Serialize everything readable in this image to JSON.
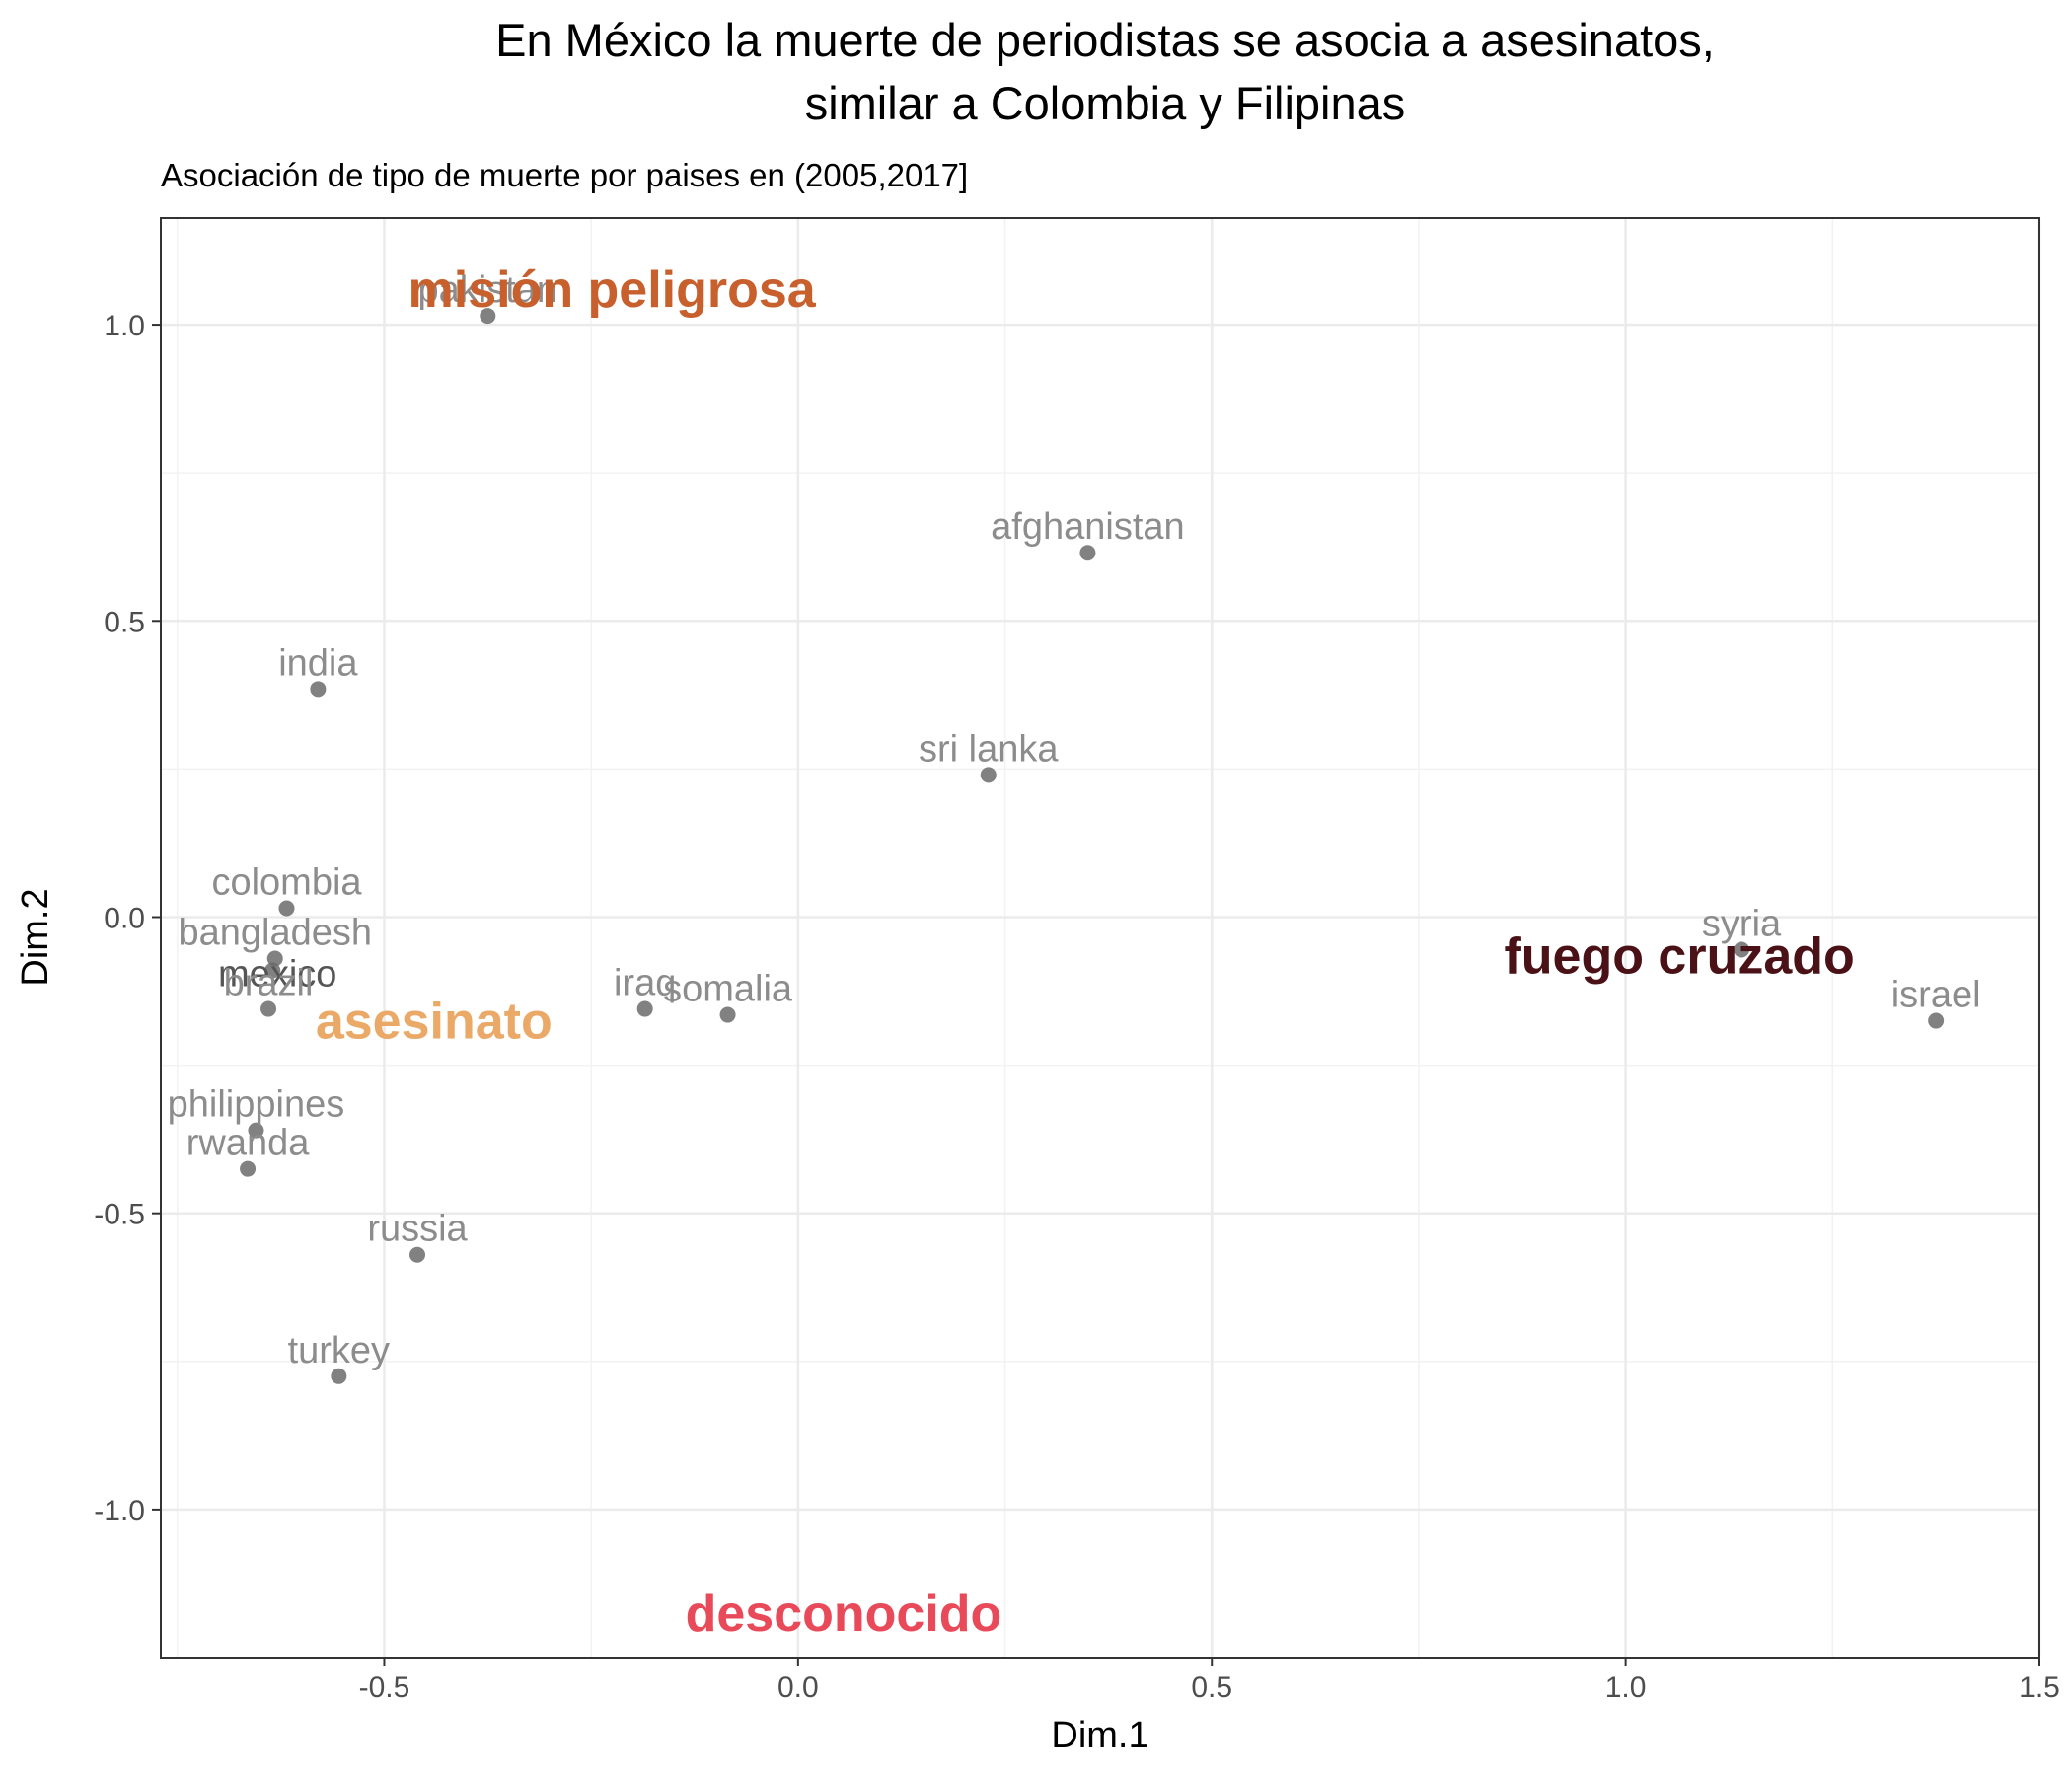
{
  "chart_data": {
    "type": "scatter",
    "title_lines": [
      "En México la muerte de periodistas se asocia a asesinatos,",
      "similar a Colombia y Filipinas"
    ],
    "subtitle": "Asociación de tipo de muerte por paises en  (2005,2017]",
    "xlabel": "Dim.1",
    "ylabel": "Dim.2",
    "xlim": [
      -0.77,
      1.5
    ],
    "ylim": [
      -1.25,
      1.18
    ],
    "x_ticks": [
      -0.5,
      0.0,
      0.5,
      1.0,
      1.5
    ],
    "x_tick_labels": [
      "-0.5",
      "0.0",
      "0.5",
      "1.0",
      "1.5"
    ],
    "y_ticks": [
      -1.0,
      -0.5,
      0.0,
      0.5,
      1.0
    ],
    "y_tick_labels": [
      "-1.0",
      "-0.5",
      "0.0",
      "0.5",
      "1.0"
    ],
    "grid": true,
    "theme": "bw",
    "points": [
      {
        "label": "pakistan",
        "x": -0.375,
        "y": 1.015
      },
      {
        "label": "afghanistan",
        "x": 0.35,
        "y": 0.615
      },
      {
        "label": "india",
        "x": -0.58,
        "y": 0.385
      },
      {
        "label": "sri lanka",
        "x": 0.23,
        "y": 0.24
      },
      {
        "label": "colombia",
        "x": -0.618,
        "y": 0.015
      },
      {
        "label": "bangladesh",
        "x": -0.632,
        "y": -0.07
      },
      {
        "label": "mexico",
        "x": -0.635,
        "y": -0.09,
        "highlight": true
      },
      {
        "label": "brazil",
        "x": -0.64,
        "y": -0.155
      },
      {
        "label": "iraq",
        "x": -0.185,
        "y": -0.155
      },
      {
        "label": "somalia",
        "x": -0.085,
        "y": -0.165
      },
      {
        "label": "philippines",
        "x": -0.655,
        "y": -0.36
      },
      {
        "label": "rwanda",
        "x": -0.665,
        "y": -0.425
      },
      {
        "label": "russia",
        "x": -0.46,
        "y": -0.57
      },
      {
        "label": "turkey",
        "x": -0.555,
        "y": -0.775
      },
      {
        "label": "syria",
        "x": 1.14,
        "y": -0.055
      },
      {
        "label": "israel",
        "x": 1.375,
        "y": -0.175
      }
    ],
    "categories": [
      {
        "label": "misión peligrosa",
        "x": -0.225,
        "y": 1.06,
        "color": "#c8602d"
      },
      {
        "label": "fuego cruzado",
        "x": 1.065,
        "y": -0.065,
        "color": "#4a1216"
      },
      {
        "label": "asesinato",
        "x": -0.44,
        "y": -0.175,
        "color": "#eba968"
      },
      {
        "label": "desconocido",
        "x": 0.055,
        "y": -1.175,
        "color": "#e84a5a"
      }
    ],
    "colors": {
      "point": "#6b6b6b",
      "country_text": "#8c8c8c",
      "mexico_text": "#555555"
    }
  }
}
